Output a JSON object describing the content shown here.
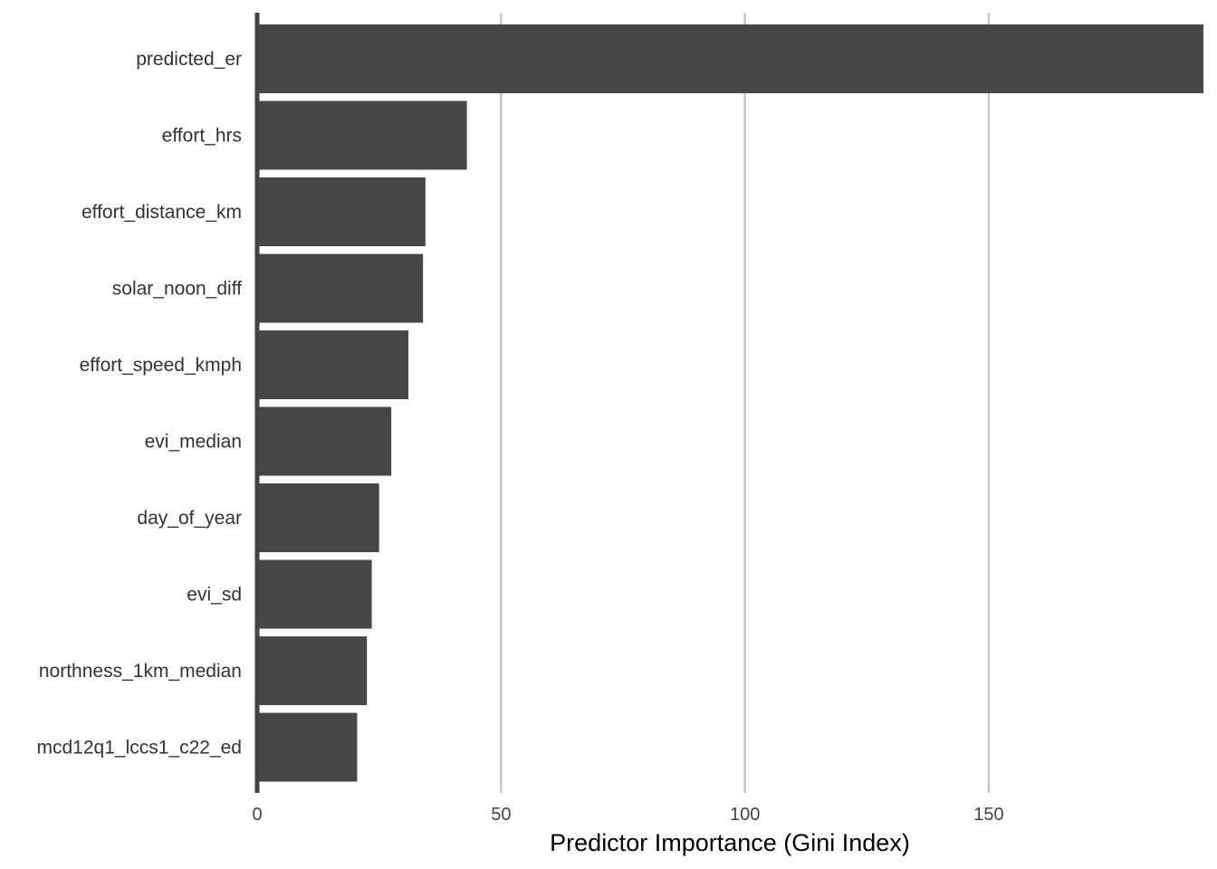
{
  "chart_data": {
    "type": "bar",
    "orientation": "horizontal",
    "title": "",
    "xlabel": "Predictor Importance (Gini Index)",
    "ylabel": "",
    "categories": [
      "predicted_er",
      "effort_hrs",
      "effort_distance_km",
      "solar_noon_diff",
      "effort_speed_kmph",
      "evi_median",
      "day_of_year",
      "evi_sd",
      "northness_1km_median",
      "mcd12q1_lccs1_c22_ed"
    ],
    "values": [
      194,
      43,
      34.5,
      34,
      31,
      27.5,
      25,
      23.5,
      22.5,
      20.5
    ],
    "xlim": [
      0,
      194
    ],
    "xticks": [
      0,
      50,
      100,
      150
    ],
    "xtick_labels": [
      "0",
      "50",
      "100",
      "150"
    ],
    "grid": true,
    "bar_color": "#474747",
    "grid_color": "#c8c8c8"
  }
}
